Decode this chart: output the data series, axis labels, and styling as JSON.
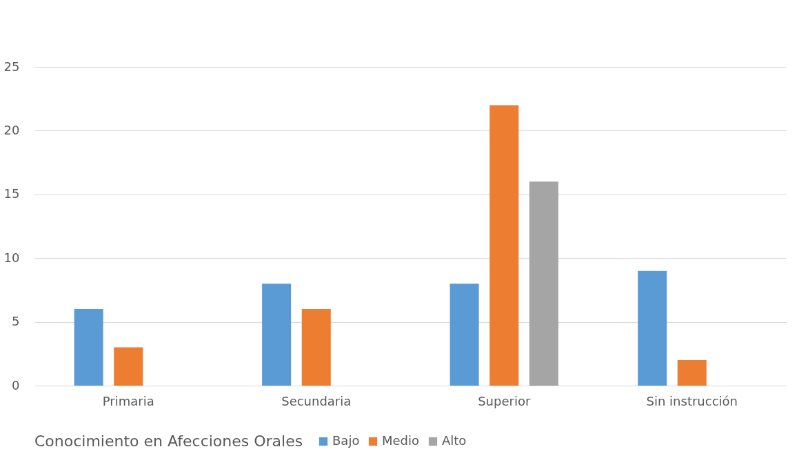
{
  "chart_data": {
    "type": "bar",
    "categories": [
      "Primaria",
      "Secundaria",
      "Superior",
      "Sin instrucción"
    ],
    "series": [
      {
        "name": "Bajo",
        "color": "#5b9bd5",
        "values": [
          6,
          8,
          8,
          9
        ]
      },
      {
        "name": "Medio",
        "color": "#ed7d31",
        "values": [
          3,
          6,
          22,
          2
        ]
      },
      {
        "name": "Alto",
        "color": "#a5a5a5",
        "values": [
          null,
          null,
          16,
          null
        ]
      }
    ],
    "legend_title": "Conocimiento en Afecciones Orales",
    "legend": "bottom",
    "ylim": [
      0,
      25
    ],
    "yticks": [
      0,
      5,
      10,
      15,
      20,
      25
    ],
    "grid": "y"
  }
}
